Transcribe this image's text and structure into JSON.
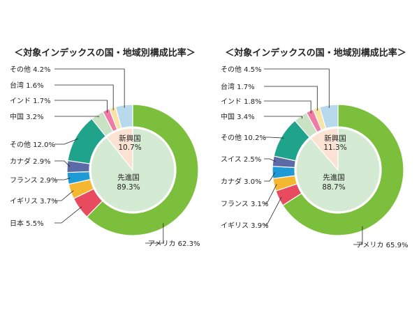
{
  "colors": {
    "america": "#7cbf3c",
    "uk_japan_red": "#e84a5f",
    "yellow": "#f5b730",
    "blue": "#1e9ad6",
    "navy": "#5c6aa6",
    "teal": "#1fa38a",
    "light_green": "#c9e2c4",
    "pink": "#ee7aa6",
    "light_yellow": "#f7e3a3",
    "light_blue": "#b8d8ec",
    "developed_inner": "#d4ead3",
    "emerging_inner": "#fbe2d3",
    "leader": "#222222"
  },
  "chart_data": [
    {
      "type": "pie",
      "title": "＜対象インデックスの国・地域別構成比率＞",
      "outer": [
        {
          "label": "アメリカ",
          "value": 62.3,
          "value_label": "62.3%",
          "color_key": "america"
        },
        {
          "label": "日本",
          "value": 5.5,
          "value_label": "5.5%",
          "color_key": "uk_japan_red"
        },
        {
          "label": "イギリス",
          "value": 3.7,
          "value_label": "3.7%",
          "color_key": "yellow"
        },
        {
          "label": "フランス",
          "value": 2.9,
          "value_label": "2.9%",
          "color_key": "blue"
        },
        {
          "label": "カナダ",
          "value": 2.9,
          "value_label": "2.9%",
          "color_key": "navy"
        },
        {
          "label": "その他",
          "value": 12.0,
          "value_label": "12.0%",
          "color_key": "teal"
        },
        {
          "label": "中国",
          "value": 3.2,
          "value_label": "3.2%",
          "color_key": "light_green"
        },
        {
          "label": "インド",
          "value": 1.7,
          "value_label": "1.7%",
          "color_key": "pink"
        },
        {
          "label": "台湾",
          "value": 1.6,
          "value_label": "1.6%",
          "color_key": "light_yellow"
        },
        {
          "label": "その他",
          "value": 4.2,
          "value_label": "4.2%",
          "color_key": "light_blue"
        }
      ],
      "inner": [
        {
          "label": "先進国",
          "value": 89.3,
          "value_label": "89.3%",
          "color_key": "developed_inner"
        },
        {
          "label": "新興国",
          "value": 10.7,
          "value_label": "10.7%",
          "color_key": "emerging_inner"
        }
      ]
    },
    {
      "type": "pie",
      "title": "＜対象インデックスの国・地域別構成比率＞",
      "outer": [
        {
          "label": "アメリカ",
          "value": 65.9,
          "value_label": "65.9%",
          "color_key": "america"
        },
        {
          "label": "イギリス",
          "value": 3.9,
          "value_label": "3.9%",
          "color_key": "uk_japan_red"
        },
        {
          "label": "フランス",
          "value": 3.1,
          "value_label": "3.1%",
          "color_key": "yellow"
        },
        {
          "label": "カナダ",
          "value": 3.0,
          "value_label": "3.0%",
          "color_key": "blue"
        },
        {
          "label": "スイス",
          "value": 2.5,
          "value_label": "2.5%",
          "color_key": "navy"
        },
        {
          "label": "その他",
          "value": 10.2,
          "value_label": "10.2%",
          "color_key": "teal"
        },
        {
          "label": "中国",
          "value": 3.4,
          "value_label": "3.4%",
          "color_key": "light_green"
        },
        {
          "label": "インド",
          "value": 1.8,
          "value_label": "1.8%",
          "color_key": "pink"
        },
        {
          "label": "台湾",
          "value": 1.7,
          "value_label": "1.7%",
          "color_key": "light_yellow"
        },
        {
          "label": "その他",
          "value": 4.5,
          "value_label": "4.5%",
          "color_key": "light_blue"
        }
      ],
      "inner": [
        {
          "label": "先進国",
          "value": 88.7,
          "value_label": "88.7%",
          "color_key": "developed_inner"
        },
        {
          "label": "新興国",
          "value": 11.3,
          "value_label": "11.3%",
          "color_key": "emerging_inner"
        }
      ]
    }
  ]
}
